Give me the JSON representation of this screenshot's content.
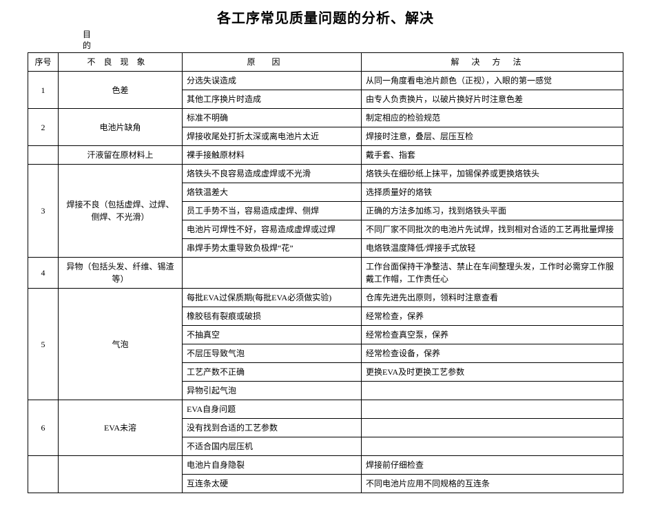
{
  "doc": {
    "title": "各工序常见质量问题的分析、解决",
    "subhead_line1": "目",
    "subhead_line2": "的"
  },
  "headers": {
    "num": "序号",
    "phenomenon": "不良现象",
    "cause": "原因",
    "solution": "解决方法"
  },
  "rows": [
    {
      "num": "1",
      "phen": "色差",
      "items": [
        {
          "cause": "分选失误造成",
          "sol": "从同一角度看电池片颜色（正视），入眼的第一感觉"
        },
        {
          "cause": "其他工序换片时造成",
          "sol": "由专人负责换片，以破片换好片时注意色差"
        }
      ]
    },
    {
      "num": "2",
      "phen": "电池片缺角",
      "items": [
        {
          "cause": "标准不明确",
          "sol": "制定相应的检验规范"
        },
        {
          "cause": "焊接收尾处打折太深或离电池片太近",
          "sol": "焊接时注意，叠层、层压互检"
        }
      ]
    },
    {
      "num": "",
      "phen": "汗液留在原材料上",
      "items": [
        {
          "cause": "裸手接触原材料",
          "sol": "戴手套、指套"
        }
      ]
    },
    {
      "num": "3",
      "phen": "焊接不良（包括虚焊、过焊、侧焊、不光滑）",
      "items": [
        {
          "cause": "烙铁头不良容易造成虚焊或不光滑",
          "sol": "烙铁头在细砂纸上抹平，加锡保养或更换烙铁头"
        },
        {
          "cause": "烙铁温差大",
          "sol": "选择质量好的烙铁"
        },
        {
          "cause": "员工手势不当，容易造成虚焊、侧焊",
          "sol": "正确的方法多加练习，找到烙铁头平面"
        },
        {
          "cause": "电池片可焊性不好，容易造成虚焊或过焊",
          "sol": "不同厂家不同批次的电池片先试焊，找到相对合适的工艺再批量焊接"
        },
        {
          "cause": "串焊手势太重导致负极焊“花”",
          "sol": "电烙铁温度降低/焊接手式放轻"
        }
      ]
    },
    {
      "num": "4",
      "phen": "异物（包括头发、纤维、锡渣等）",
      "items": [
        {
          "cause": "",
          "sol": "工作台面保持干净整洁、禁止在车间整理头发，工作时必需穿工作服戴工作帽，工作责任心"
        }
      ]
    },
    {
      "num": "5",
      "phen": "气泡",
      "items": [
        {
          "cause": "每批EVA过保质期(每批EVA必须做实验)",
          "sol": "仓库先进先出原则，领料时注意查看"
        },
        {
          "cause": "橡胶毯有裂痕或破损",
          "sol": "经常检查，保养"
        },
        {
          "cause": "不抽真空",
          "sol": "经常检查真空泵，保养"
        },
        {
          "cause": "不层压导致气泡",
          "sol": "经常检查设备，保养"
        },
        {
          "cause": "工艺产数不正确",
          "sol": "更换EVA及时更换工艺参数"
        },
        {
          "cause": "异物引起气泡",
          "sol": ""
        }
      ]
    },
    {
      "num": "6",
      "phen": "EVA未溶",
      "items": [
        {
          "cause": "EVA自身问题",
          "sol": ""
        },
        {
          "cause": "没有找到合适的工艺参数",
          "sol": ""
        },
        {
          "cause": "不适合国内层压机",
          "sol": ""
        }
      ]
    },
    {
      "num": "",
      "phen": "",
      "items": [
        {
          "cause": "电池片自身隐裂",
          "sol": "焊接前仔细检查"
        },
        {
          "cause": "互连条太硬",
          "sol": "不同电池片应用不同规格的互连条"
        }
      ]
    }
  ]
}
